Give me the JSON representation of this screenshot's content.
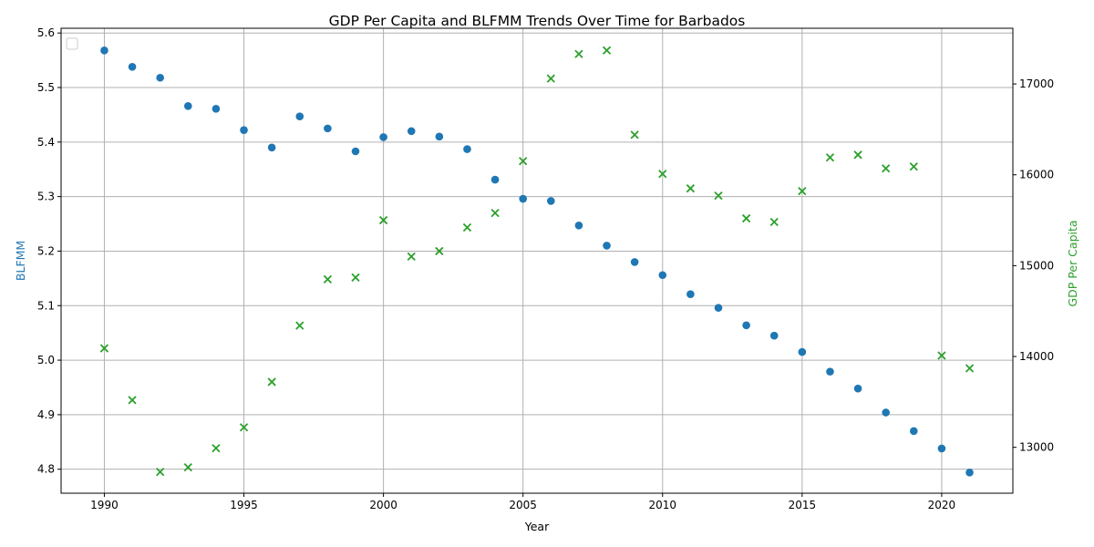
{
  "chart_data": {
    "type": "scatter",
    "title": "GDP Per Capita and BLFMM Trends Over Time for Barbados",
    "xlabel": "Year",
    "ylabel_left": "BLFMM",
    "ylabel_right": "GDP Per Capita",
    "xlim": [
      1988.45,
      2022.55
    ],
    "ylim_left": [
      4.756,
      5.6087
    ],
    "ylim_right": [
      12495,
      17613
    ],
    "x_ticks": [
      1990,
      1995,
      2000,
      2005,
      2010,
      2015,
      2020
    ],
    "y_ticks_left": [
      4.8,
      4.9,
      5.0,
      5.1,
      5.2,
      5.3,
      5.4,
      5.5,
      5.6
    ],
    "y_ticks_right": [
      13000,
      14000,
      15000,
      16000,
      17000
    ],
    "grid": true,
    "legend": "top-left",
    "colors": {
      "blfmm": "#1f77b4",
      "gdp": "#2ca02c",
      "text": "#000000"
    },
    "x": [
      1990,
      1991,
      1992,
      1993,
      1994,
      1995,
      1996,
      1997,
      1998,
      1999,
      2000,
      2001,
      2002,
      2003,
      2004,
      2005,
      2006,
      2007,
      2008,
      2009,
      2010,
      2011,
      2012,
      2013,
      2014,
      2015,
      2016,
      2017,
      2018,
      2019,
      2020,
      2021
    ],
    "series": [
      {
        "axis": "left",
        "marker": "circle",
        "values": [
          5.568,
          5.538,
          5.518,
          5.466,
          5.461,
          5.422,
          5.39,
          5.447,
          5.425,
          5.383,
          5.409,
          5.42,
          5.41,
          5.387,
          5.331,
          5.296,
          5.292,
          5.247,
          5.21,
          5.18,
          5.156,
          5.121,
          5.096,
          5.064,
          5.045,
          5.015,
          4.979,
          4.948,
          4.904,
          4.87,
          4.838,
          4.794
        ]
      },
      {
        "axis": "right",
        "marker": "x",
        "values": [
          14090,
          13520,
          12730,
          12780,
          12990,
          13220,
          13720,
          14340,
          14850,
          14870,
          15500,
          15100,
          15160,
          15420,
          15580,
          16150,
          17060,
          17330,
          17370,
          16440,
          16010,
          15850,
          15770,
          15520,
          15480,
          15820,
          16190,
          16220,
          16070,
          16090,
          14010,
          13870
        ]
      }
    ]
  }
}
